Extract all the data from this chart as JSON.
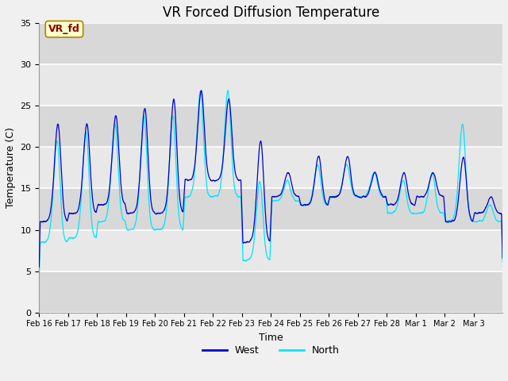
{
  "title": "VR Forced Diffusion Temperature",
  "xlabel": "Time",
  "ylabel": "Temperature (C)",
  "ylim": [
    0,
    35
  ],
  "fig_bg": "#f0f0f0",
  "plot_bg": "#e8e8e8",
  "grid_color": "#ffffff",
  "west_color": "#0000cd",
  "north_color": "#00e5ff",
  "west_label": "West",
  "north_label": "North",
  "annotation_text": "VR_fd",
  "annotation_bg": "#ffffcc",
  "annotation_border": "#8b0000",
  "tick_labels": [
    "Feb 16",
    "Feb 17",
    "Feb 18",
    "Feb 19",
    "Feb 20",
    "Feb 21",
    "Feb 22",
    "Feb 23",
    "Feb 24",
    "Feb 25",
    "Feb 26",
    "Feb 27",
    "Feb 28",
    "Mar 1",
    "Mar 2",
    "Mar 3"
  ],
  "yticks": [
    0,
    5,
    10,
    15,
    20,
    25,
    30,
    35
  ],
  "title_fontsize": 12,
  "axis_fontsize": 9,
  "tick_fontsize": 8
}
